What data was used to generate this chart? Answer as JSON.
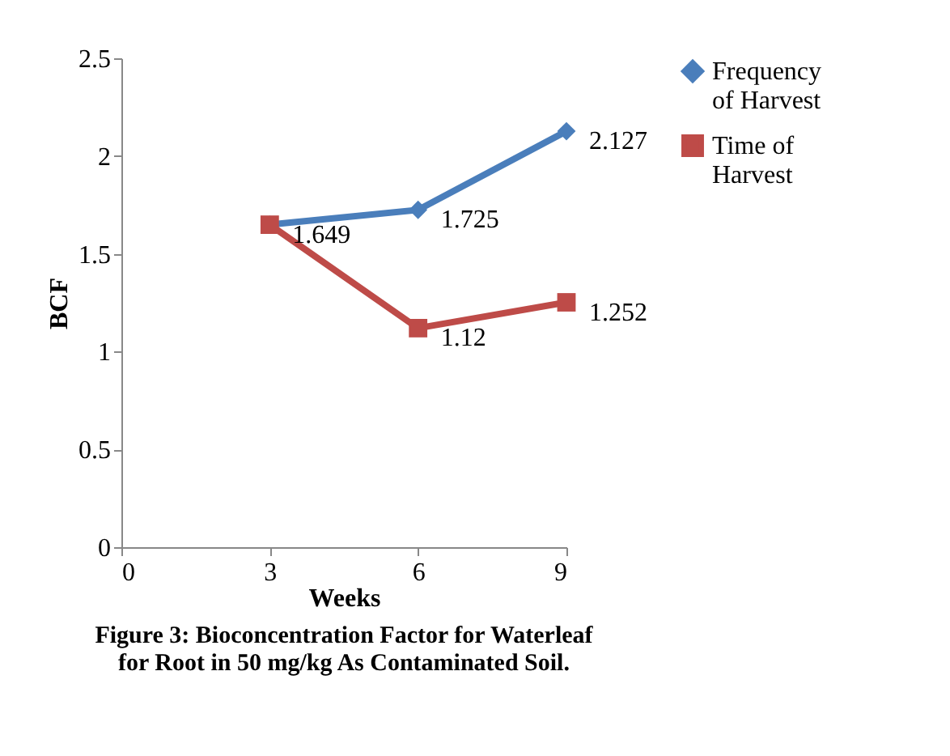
{
  "chart_data": {
    "type": "line",
    "title": "Figure 3: Bioconcentration Factor for Waterleaf for Root in 50 mg/kg As Contaminated Soil.",
    "xlabel": "Weeks",
    "ylabel": "BCF",
    "x": [
      3,
      6,
      9
    ],
    "series": [
      {
        "name": "Frequency of Harvest",
        "color": "#4a7ebb",
        "marker": "diamond",
        "values": [
          1.649,
          1.725,
          2.127
        ],
        "value_labels": [
          "1.649",
          "1.725",
          "2.127"
        ]
      },
      {
        "name": "Time of Harvest",
        "color": "#be4b48",
        "marker": "square",
        "values": [
          1.649,
          1.12,
          1.252
        ],
        "value_labels": [
          null,
          "1.12",
          "1.252"
        ]
      }
    ],
    "xlim": [
      0,
      9
    ],
    "xticks": [
      0,
      3,
      6,
      9
    ],
    "ylim": [
      0,
      2.5
    ],
    "yticks": [
      0,
      0.5,
      1,
      1.5,
      2,
      2.5
    ],
    "legend": "top right",
    "grid": false,
    "line_style": "solid"
  }
}
